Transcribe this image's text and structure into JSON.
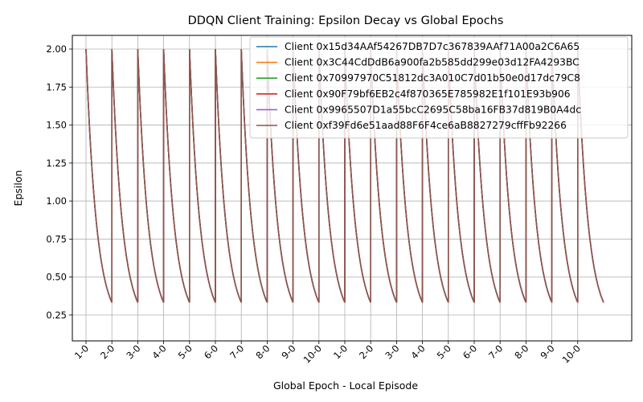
{
  "chart_data": {
    "type": "line",
    "title": "DDQN Client Training: Epsilon Decay vs Global Epochs",
    "xlabel": "Global Epoch - Local Episode",
    "ylabel": "Epsilon",
    "ylim": [
      0.08,
      2.09
    ],
    "yticks": [
      0.25,
      0.5,
      0.75,
      1.0,
      1.25,
      1.5,
      1.75,
      2.0
    ],
    "ytick_labels": [
      "0.25",
      "0.50",
      "0.75",
      "1.00",
      "1.25",
      "1.50",
      "1.75",
      "2.00"
    ],
    "xtick_labels": [
      "1-0",
      "2-0",
      "3-0",
      "4-0",
      "5-0",
      "6-0",
      "7-0",
      "8-0",
      "9-0",
      "10-0",
      "1-0",
      "2-0",
      "3-0",
      "4-0",
      "5-0",
      "6-0",
      "7-0",
      "8-0",
      "9-0",
      "10-0"
    ],
    "grid": true,
    "legend_position": "top-right",
    "cycles": 20,
    "episodes_per_cycle": 60,
    "decay_per_episode": 0.96,
    "epsilon_start": 2.0,
    "epsilon_end": 0.175,
    "series": [
      {
        "name": "Client 0x15d34AAf54267DB7D7c367839AAf71A00a2C6A65",
        "color": "#1f77b4"
      },
      {
        "name": "Client 0x3C44CdDdB6a900fa2b585dd299e03d12FA4293BC",
        "color": "#ff7f0e"
      },
      {
        "name": "Client 0x70997970C51812dc3A010C7d01b50e0d17dc79C8",
        "color": "#2ca02c"
      },
      {
        "name": "Client 0x90F79bf6EB2c4f870365E785982E1f101E93b906",
        "color": "#d62728"
      },
      {
        "name": "Client 0x9965507D1a55bcC2695C58ba16FB37d819B0A4dc",
        "color": "#9467bd"
      },
      {
        "name": "Client 0xf39Fd6e51aad88F6F4ce6aB8827279cffFb92266",
        "color": "#8c564b"
      }
    ]
  }
}
